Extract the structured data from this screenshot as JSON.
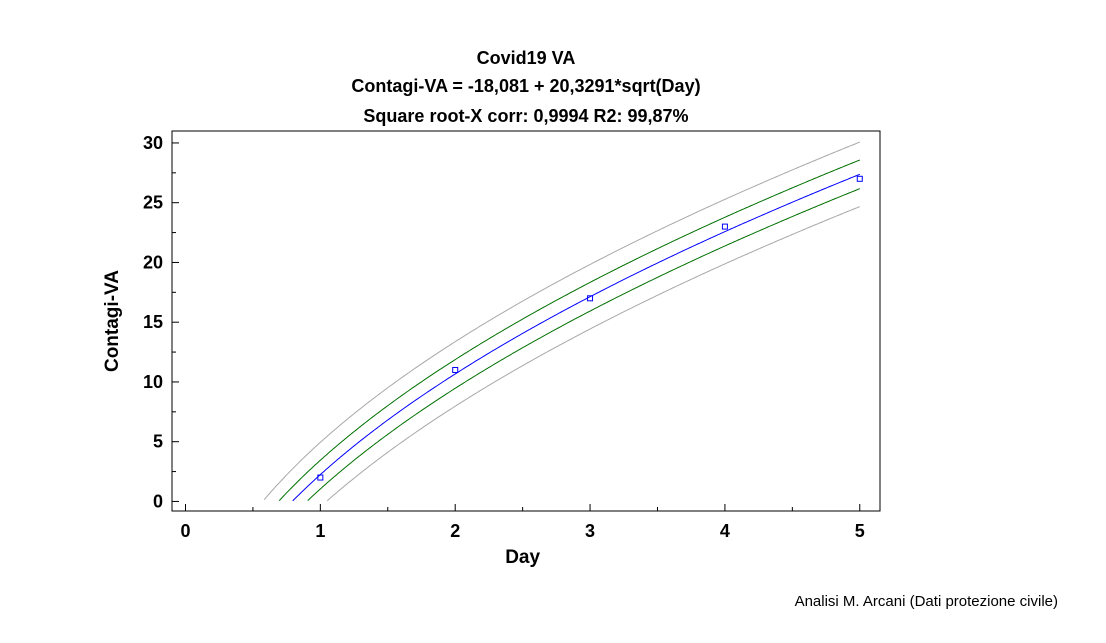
{
  "chart_data": {
    "type": "line",
    "title": "Covid19 VA",
    "subtitle": "Contagi-VA = -18,081 + 20,3291*sqrt(Day)",
    "fit_stats": "Square root-X corr: 0,9994 R2: 99,87%",
    "xlabel": "Day",
    "ylabel": "Contagi-VA",
    "xlim": [
      -0.1,
      5.15
    ],
    "ylim": [
      -0.8,
      31
    ],
    "x_ticks": [
      0,
      1,
      2,
      3,
      4,
      5
    ],
    "y_ticks": [
      0,
      5,
      10,
      15,
      20,
      25,
      30
    ],
    "grid": false,
    "model": {
      "intercept": -18.081,
      "slope": 20.3291,
      "transform": "sqrt(x)"
    },
    "observed": {
      "x": [
        1,
        2,
        3,
        4,
        5
      ],
      "y": [
        2,
        11,
        17,
        23,
        27
      ],
      "color": "#0000ff"
    },
    "bands": {
      "confidence_halfwidth": 1.2,
      "prediction_halfwidth": 2.7,
      "fit_color": "#0000ff",
      "confidence_color": "#007000",
      "prediction_color": "#a8a8a8"
    }
  },
  "footer": {
    "credit": "Analisi M. Arcani (Dati protezione civile)"
  }
}
